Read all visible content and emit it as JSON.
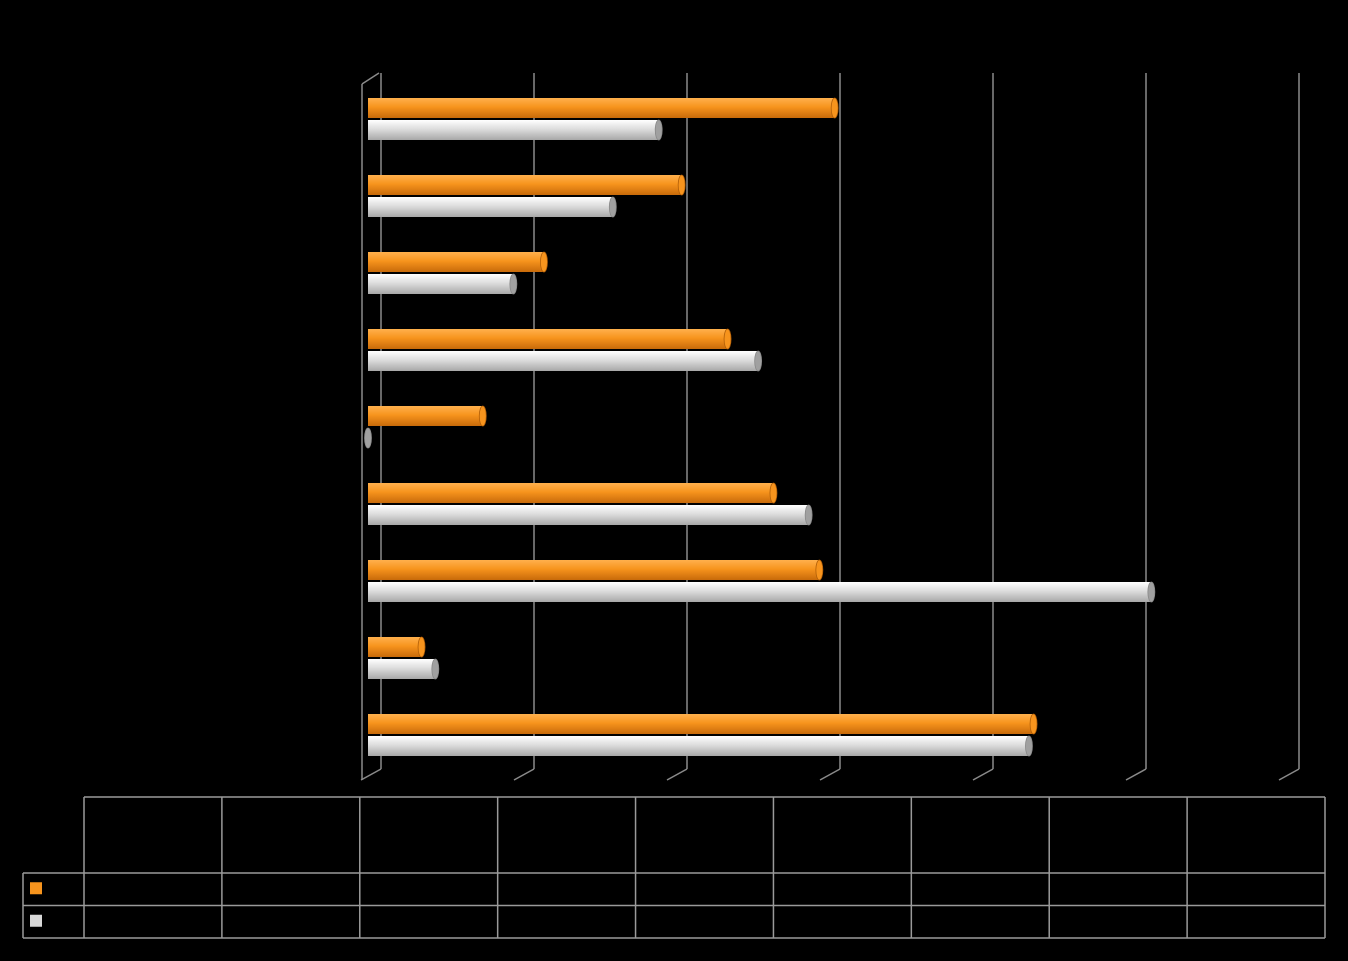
{
  "chart_data": {
    "type": "bar",
    "orientation": "horizontal",
    "title": "",
    "xlabel": "",
    "ylabel": "",
    "xlim": [
      0,
      6
    ],
    "grid": true,
    "legend": "data-table",
    "categories": [
      "",
      "",
      "",
      "",
      "",
      "",
      "",
      "",
      ""
    ],
    "series": [
      {
        "color": "#F7941D",
        "values": [
          3.05,
          2.05,
          1.15,
          2.35,
          0.75,
          2.65,
          2.95,
          0.35,
          4.35
        ]
      },
      {
        "color": "#D9D9D9",
        "values": [
          1.9,
          1.6,
          0.95,
          2.55,
          0.0,
          2.88,
          5.12,
          0.44,
          4.32
        ]
      }
    ],
    "table": {
      "columns": [
        "",
        "",
        "",
        "",
        "",
        "",
        "",
        "",
        ""
      ],
      "rows": [
        {
          "series": 0,
          "cells": [
            "",
            "",
            "",
            "",
            "",
            "",
            "",
            "",
            ""
          ]
        },
        {
          "series": 1,
          "cells": [
            "",
            "",
            "",
            "",
            "",
            "",
            "",
            "",
            ""
          ]
        }
      ]
    }
  }
}
